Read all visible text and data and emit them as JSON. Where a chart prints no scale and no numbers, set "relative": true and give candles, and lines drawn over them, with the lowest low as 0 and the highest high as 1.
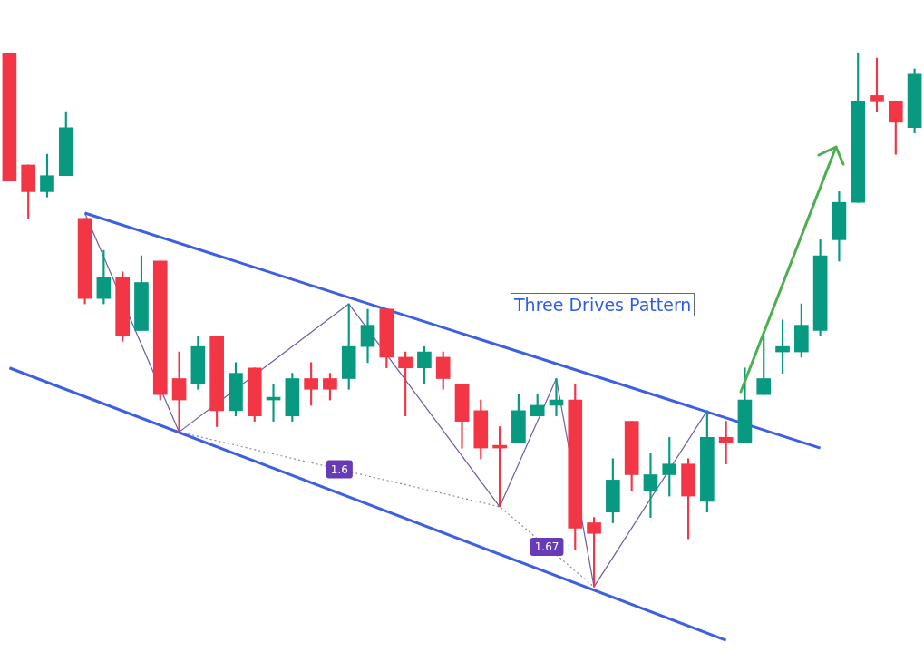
{
  "chart_data": {
    "type": "candlestick",
    "title": "Three Drives Pattern",
    "relative": true,
    "categories": [
      null,
      null,
      null,
      null,
      null,
      null,
      null,
      null,
      null,
      null,
      null,
      null,
      null,
      null,
      null,
      null,
      null,
      null,
      null,
      null,
      null,
      null,
      null,
      null,
      null,
      null,
      null,
      null,
      null,
      null,
      null,
      null,
      null,
      null,
      null,
      null,
      null,
      null,
      null,
      null,
      null,
      null,
      null,
      null,
      null,
      null,
      null,
      null,
      null
    ],
    "ohlc": [
      [
        1.0,
        1.0,
        0.76,
        0.76
      ],
      [
        0.79,
        0.79,
        0.69,
        0.74
      ],
      [
        0.74,
        0.81,
        0.73,
        0.77
      ],
      [
        0.77,
        0.89,
        0.77,
        0.86
      ],
      [
        0.69,
        0.69,
        0.53,
        0.54
      ],
      [
        0.54,
        0.63,
        0.53,
        0.58
      ],
      [
        0.58,
        0.59,
        0.46,
        0.47
      ],
      [
        0.48,
        0.62,
        0.48,
        0.57
      ],
      [
        0.61,
        0.61,
        0.35,
        0.36
      ],
      [
        0.39,
        0.44,
        0.29,
        0.35
      ],
      [
        0.38,
        0.47,
        0.37,
        0.45
      ],
      [
        0.47,
        0.47,
        0.3,
        0.33
      ],
      [
        0.33,
        0.42,
        0.32,
        0.4
      ],
      [
        0.41,
        0.41,
        0.31,
        0.32
      ],
      [
        0.35,
        0.38,
        0.31,
        0.355
      ],
      [
        0.32,
        0.4,
        0.31,
        0.39
      ],
      [
        0.39,
        0.42,
        0.34,
        0.37
      ],
      [
        0.39,
        0.4,
        0.35,
        0.37
      ],
      [
        0.39,
        0.53,
        0.37,
        0.45
      ],
      [
        0.45,
        0.52,
        0.42,
        0.49
      ],
      [
        0.52,
        0.52,
        0.41,
        0.43
      ],
      [
        0.43,
        0.44,
        0.32,
        0.41
      ],
      [
        0.41,
        0.45,
        0.38,
        0.44
      ],
      [
        0.43,
        0.44,
        0.37,
        0.39
      ],
      [
        0.38,
        0.38,
        0.26,
        0.31
      ],
      [
        0.33,
        0.35,
        0.24,
        0.26
      ],
      [
        0.265,
        0.3,
        0.15,
        0.26
      ],
      [
        0.27,
        0.36,
        0.27,
        0.33
      ],
      [
        0.32,
        0.36,
        0.32,
        0.34
      ],
      [
        0.34,
        0.39,
        0.32,
        0.35
      ],
      [
        0.35,
        0.38,
        0.07,
        0.11
      ],
      [
        0.12,
        0.13,
        0.0,
        0.1
      ],
      [
        0.14,
        0.24,
        0.12,
        0.2
      ],
      [
        0.31,
        0.31,
        0.18,
        0.21
      ],
      [
        0.18,
        0.25,
        0.13,
        0.21
      ],
      [
        0.21,
        0.28,
        0.17,
        0.23
      ],
      [
        0.23,
        0.24,
        0.09,
        0.17
      ],
      [
        0.16,
        0.33,
        0.14,
        0.28
      ],
      [
        0.28,
        0.31,
        0.23,
        0.27
      ],
      [
        0.27,
        0.41,
        0.27,
        0.35
      ],
      [
        0.36,
        0.47,
        0.36,
        0.39
      ],
      [
        0.44,
        0.5,
        0.4,
        0.45
      ],
      [
        0.44,
        0.53,
        0.43,
        0.49
      ],
      [
        0.48,
        0.65,
        0.47,
        0.62
      ],
      [
        0.65,
        0.74,
        0.61,
        0.72
      ],
      [
        0.72,
        1.0,
        0.72,
        0.91
      ],
      [
        0.92,
        0.99,
        0.89,
        0.91
      ],
      [
        0.91,
        0.91,
        0.81,
        0.87
      ],
      [
        0.86,
        0.97,
        0.85,
        0.96
      ]
    ],
    "series": [
      {
        "type": "line",
        "color": "#3d5fe0",
        "values": [
          null,
          null,
          null,
          null,
          0.7,
          null,
          null,
          null,
          null,
          null,
          null,
          null,
          null,
          null,
          null,
          null,
          null,
          null,
          null,
          null,
          null,
          null,
          null,
          null,
          null,
          null,
          null,
          null,
          null,
          null,
          null,
          null,
          null,
          null,
          null,
          null,
          null,
          null,
          null,
          null,
          null,
          null,
          null,
          0.26,
          null,
          null,
          null,
          null,
          null
        ]
      },
      {
        "type": "line",
        "color": "#3d5fe0",
        "values": [
          0.41,
          null,
          null,
          null,
          null,
          null,
          null,
          null,
          null,
          null,
          null,
          null,
          null,
          null,
          null,
          null,
          null,
          null,
          null,
          null,
          null,
          null,
          null,
          null,
          null,
          null,
          null,
          null,
          null,
          null,
          null,
          null,
          null,
          null,
          null,
          null,
          null,
          null,
          -0.1,
          null,
          null,
          null,
          null,
          null,
          null,
          null,
          null,
          null,
          null
        ]
      },
      {
        "type": "line",
        "color": "#6f5aa8",
        "values": [
          null,
          null,
          null,
          null,
          0.7,
          null,
          null,
          null,
          null,
          0.29,
          null,
          null,
          null,
          null,
          null,
          null,
          null,
          null,
          0.53,
          null,
          null,
          null,
          null,
          null,
          null,
          null,
          0.15,
          null,
          null,
          0.39,
          null,
          0.0,
          null,
          null,
          null,
          null,
          null,
          0.33,
          null,
          null,
          null,
          null,
          null,
          null,
          null,
          null,
          null,
          null,
          null
        ]
      },
      {
        "type": "line",
        "color": "#8a8a9a",
        "line_style": "dotted",
        "values": [
          null,
          null,
          null,
          null,
          null,
          null,
          null,
          null,
          null,
          0.29,
          null,
          null,
          null,
          null,
          null,
          null,
          null,
          null,
          null,
          null,
          null,
          null,
          null,
          null,
          null,
          null,
          0.15,
          null,
          null,
          null,
          null,
          0.0,
          null,
          null,
          null,
          null,
          null,
          null,
          null,
          null,
          null,
          null,
          null,
          null,
          null,
          null,
          null,
          null,
          null
        ]
      }
    ],
    "annotations": [
      "1.6",
      "1.67"
    ]
  }
}
